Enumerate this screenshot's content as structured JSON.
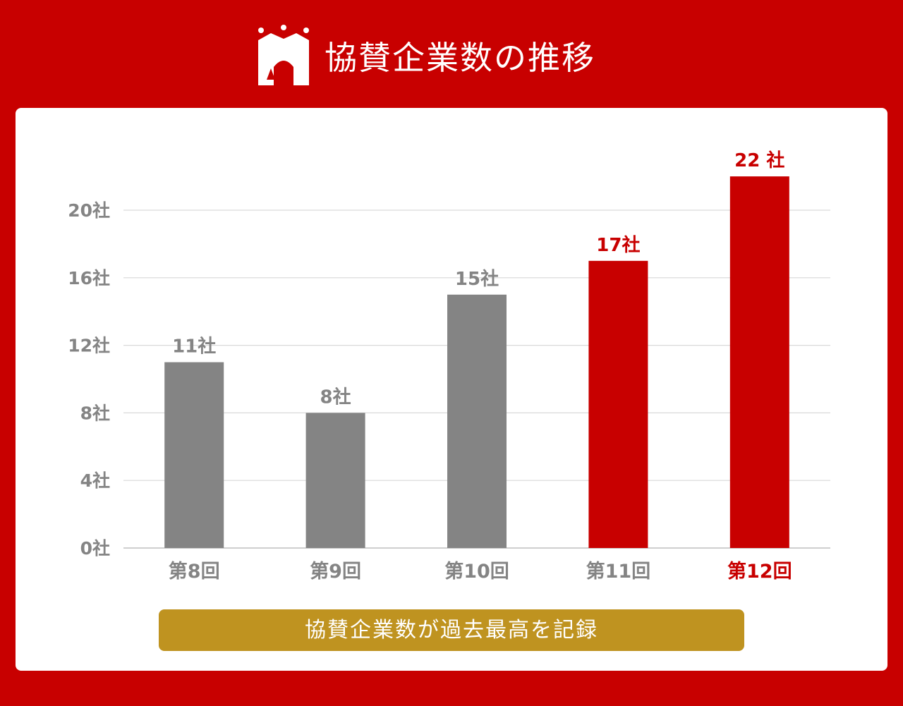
{
  "header": {
    "title": "協賛企業数の推移",
    "logo_icon": "crown-castle-icon"
  },
  "colors": {
    "background": "#c80000",
    "card": "#ffffff",
    "bar_past": "#848484",
    "bar_recent": "#c80000",
    "grid": "#d9d9d9",
    "banner": "#bf9320"
  },
  "banner": {
    "text": "協賛企業数が過去最高を記録"
  },
  "chart_data": {
    "type": "bar",
    "categories": [
      "第8回",
      "第9回",
      "第10回",
      "第11回",
      "第12回"
    ],
    "values": [
      11,
      8,
      15,
      17,
      22
    ],
    "value_labels": [
      "11社",
      "8社",
      "15社",
      "17社",
      "22 社"
    ],
    "highlighted": [
      false,
      false,
      false,
      true,
      true
    ],
    "y_ticks": [
      0,
      4,
      8,
      12,
      16,
      20
    ],
    "y_tick_labels": [
      "0社",
      "4社",
      "8社",
      "12社",
      "16社",
      "20社"
    ],
    "ylim": [
      0,
      22
    ],
    "grid": true,
    "title": "",
    "xlabel": "",
    "ylabel": ""
  }
}
